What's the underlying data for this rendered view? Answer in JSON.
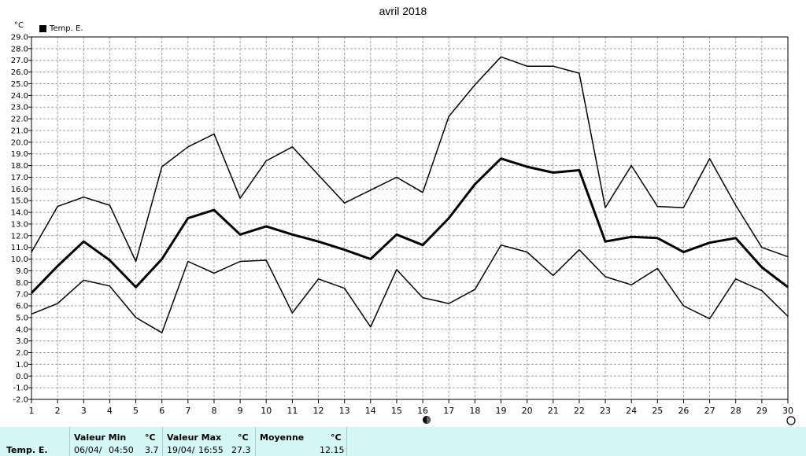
{
  "chart_data": {
    "type": "line",
    "title": "avril 2018",
    "ylabel": "°C",
    "ylim": [
      -2,
      29
    ],
    "yticks": [
      "29.0",
      "28.0",
      "27.0",
      "26.0",
      "25.0",
      "24.0",
      "23.0",
      "22.0",
      "21.0",
      "20.0",
      "19.0",
      "18.0",
      "17.0",
      "16.0",
      "15.0",
      "14.0",
      "13.0",
      "12.0",
      "11.0",
      "10.0",
      "9.0",
      "8.0",
      "7.0",
      "6.0",
      "5.0",
      "4.0",
      "3.0",
      "2.0",
      "1.0",
      "0.0",
      "-1.0",
      "-2.0"
    ],
    "x": [
      1,
      2,
      3,
      4,
      5,
      6,
      7,
      8,
      9,
      10,
      11,
      12,
      13,
      14,
      15,
      16,
      17,
      18,
      19,
      20,
      21,
      22,
      23,
      24,
      25,
      26,
      27,
      28,
      29,
      30
    ],
    "grid": true,
    "legend": "top-left",
    "legend_label": "Temp. E.",
    "series": [
      {
        "values": [
          10.6,
          14.5,
          15.3,
          14.6,
          9.8,
          17.9,
          19.6,
          20.7,
          15.2,
          18.4,
          19.6,
          17.2,
          14.8,
          15.9,
          17.0,
          15.7,
          22.2,
          24.9,
          27.3,
          26.5,
          26.5,
          25.9,
          14.4,
          18.0,
          14.5,
          14.4,
          18.6,
          14.6,
          11.0,
          10.2
        ]
      },
      {
        "values": [
          7.1,
          9.4,
          11.5,
          9.9,
          7.6,
          10.0,
          13.5,
          14.2,
          12.1,
          12.8,
          12.1,
          11.5,
          10.8,
          10.0,
          12.1,
          11.2,
          13.5,
          16.4,
          18.6,
          17.9,
          17.4,
          17.6,
          11.5,
          11.9,
          11.8,
          10.6,
          11.4,
          11.8,
          9.3,
          7.6
        ]
      },
      {
        "values": [
          5.3,
          6.2,
          8.2,
          7.7,
          5.0,
          3.7,
          9.8,
          8.8,
          9.8,
          9.9,
          5.4,
          8.3,
          7.5,
          4.2,
          9.1,
          6.7,
          6.2,
          7.4,
          11.2,
          10.6,
          8.6,
          10.8,
          8.5,
          7.8,
          9.2,
          6.0,
          4.9,
          8.3,
          7.3,
          5.1
        ]
      }
    ]
  },
  "summary": {
    "row_label": "Temp. E.",
    "min_header": "Valeur Min",
    "min_unit": "°C",
    "min_date": "06/04/",
    "min_time": "04:50",
    "min_value": "3.7",
    "max_header": "Valeur Max",
    "max_unit": "°C",
    "max_date": "19/04/",
    "max_time": "16:55",
    "max_value": "27.3",
    "avg_header": "Moyenne",
    "avg_unit": "°C",
    "avg_value": "12.15"
  },
  "colors": {
    "table_bg": "#d6f5f5",
    "line": "#000000",
    "grid": "#a0a0a0"
  }
}
